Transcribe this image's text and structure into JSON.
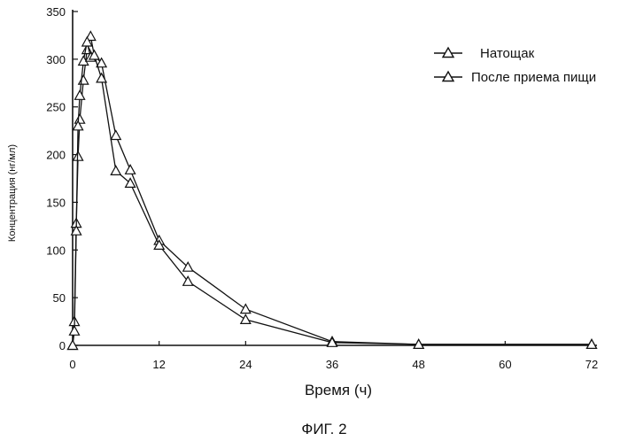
{
  "chart_data": {
    "type": "line",
    "title": "",
    "xlabel": "Время (ч)",
    "ylabel": "Концентрация (нг/мл)",
    "xlim": [
      0,
      72
    ],
    "ylim": [
      0,
      350
    ],
    "xticks": [
      0,
      12,
      24,
      36,
      48,
      60,
      72
    ],
    "yticks": [
      0,
      50,
      100,
      150,
      200,
      250,
      300,
      350
    ],
    "grid": false,
    "legend_position": "top-right",
    "marker": "triangle",
    "series": [
      {
        "name": "Натощак",
        "x": [
          0,
          0.25,
          0.5,
          0.75,
          1,
          1.5,
          2,
          2.5,
          3,
          4,
          6,
          8,
          12,
          16,
          24,
          36,
          48,
          72
        ],
        "y": [
          0,
          25,
          128,
          198,
          237,
          278,
          310,
          324,
          304,
          296,
          220,
          184,
          110,
          82,
          38,
          4,
          1,
          1
        ]
      },
      {
        "name": "После приема пищи",
        "x": [
          0,
          0.25,
          0.5,
          0.75,
          1,
          1.5,
          2,
          2.5,
          3,
          4,
          6,
          8,
          12,
          16,
          24,
          36,
          48,
          72
        ],
        "y": [
          0,
          15,
          120,
          230,
          262,
          298,
          318,
          302,
          304,
          280,
          183,
          170,
          105,
          67,
          27,
          3,
          1,
          1
        ]
      }
    ]
  },
  "caption": "ФИГ. 2"
}
